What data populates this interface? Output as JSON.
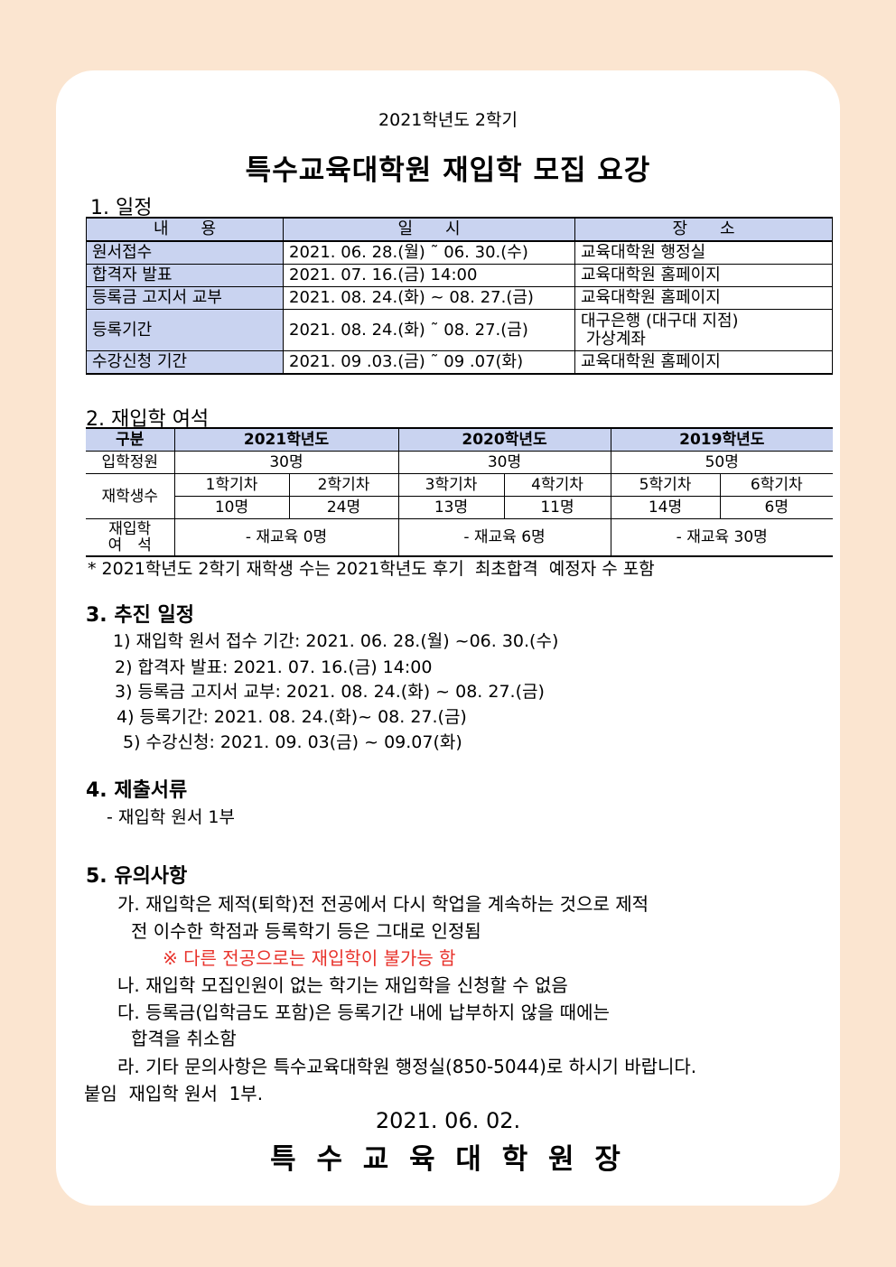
{
  "subtitle": "2021학년도 2학기",
  "title": "특수교육대학원 재입학 모집 요강",
  "s1": {
    "heading": "1. 일정",
    "headers": [
      "내　　용",
      "일　　시",
      "장　　소"
    ],
    "rows": [
      [
        "원서접수",
        "2021. 06. 28.(월) ˜ 06. 30.(수)",
        "교육대학원 행정실"
      ],
      [
        "합격자 발표",
        "2021. 07. 16.(금) 14:00",
        "교육대학원 홈페이지"
      ],
      [
        "등록금 고지서 교부",
        "2021. 08. 24.(화) ~ 08. 27.(금)",
        "교육대학원 홈페이지"
      ],
      [
        "등록기간",
        "2021. 08. 24.(화) ˜ 08. 27.(금)",
        "대구은행 (대구대 지점)\n 가상계좌"
      ],
      [
        "수강신청 기간",
        "2021. 09 .03.(금) ˜ 09 .07(화)",
        "교육대학원 홈페이지"
      ]
    ]
  },
  "s2": {
    "heading": "2. 재입학 여석",
    "headers": [
      "구분",
      "2021학년도",
      "2020학년도",
      "2019학년도"
    ],
    "quota_label": "입학정원",
    "quota": [
      "30명",
      "30명",
      "50명"
    ],
    "students_label": "재학생수",
    "terms": [
      "1학기차",
      "2학기차",
      "3학기차",
      "4학기차",
      "5학기차",
      "6학기차"
    ],
    "counts": [
      "10명",
      "24명",
      "13명",
      "11명",
      "14명",
      "6명"
    ],
    "vacancy_label": "재입학\n여　석",
    "vacancy": [
      "- 재교육 0명",
      "- 재교육 6명",
      "- 재교육 30명"
    ],
    "note": "* 2021학년도 2학기 재학생 수는 2021학년도 후기  최초합격  예정자 수 포함"
  },
  "s3": {
    "heading": "3. 추진 일정",
    "items": [
      "1) 재입학 원서 접수 기간: 2021. 06. 28.(월) ~06. 30.(수)",
      "2) 합격자 발표: 2021. 07. 16.(금) 14:00",
      "3) 등록금 고지서 교부: 2021. 08. 24.(화) ~ 08. 27.(금)",
      "4) 등록기간: 2021. 08. 24.(화)~ 08. 27.(금)",
      "5) 수강신청: 2021. 09. 03(금) ~ 09.07(화)"
    ]
  },
  "s4": {
    "heading": "4. 제출서류",
    "items": [
      "- 재입학 원서 1부"
    ]
  },
  "s5": {
    "heading": "5. 유의사항",
    "lines": [
      "가. 재입학은 제적(퇴학)전 전공에서 다시 학업을 계속하는 것으로 제적",
      "전 이수한 학점과 등록학기 등은 그대로 인정됨",
      "※ 다른 전공으로는 재입학이 불가능 함",
      "나. 재입학 모집인원이 없는 학기는 재입학을 신청할 수 없음",
      "다. 등록금(입학금도 포함)은 등록기간 내에 납부하지 않을 때에는",
      "합격을 취소함",
      "라. 기타 문의사항은 특수교육대학원 행정실(850-5044)로 하시기 바랍니다."
    ]
  },
  "attachment": "붙임  재입학 원서  1부.",
  "date": "2021. 06. 02.",
  "signer": "특 수 교 육 대 학 원 장",
  "colors": {
    "background": "#fbe5d0",
    "header_fill": "#c9d3f0",
    "warning": "#e8322b"
  }
}
